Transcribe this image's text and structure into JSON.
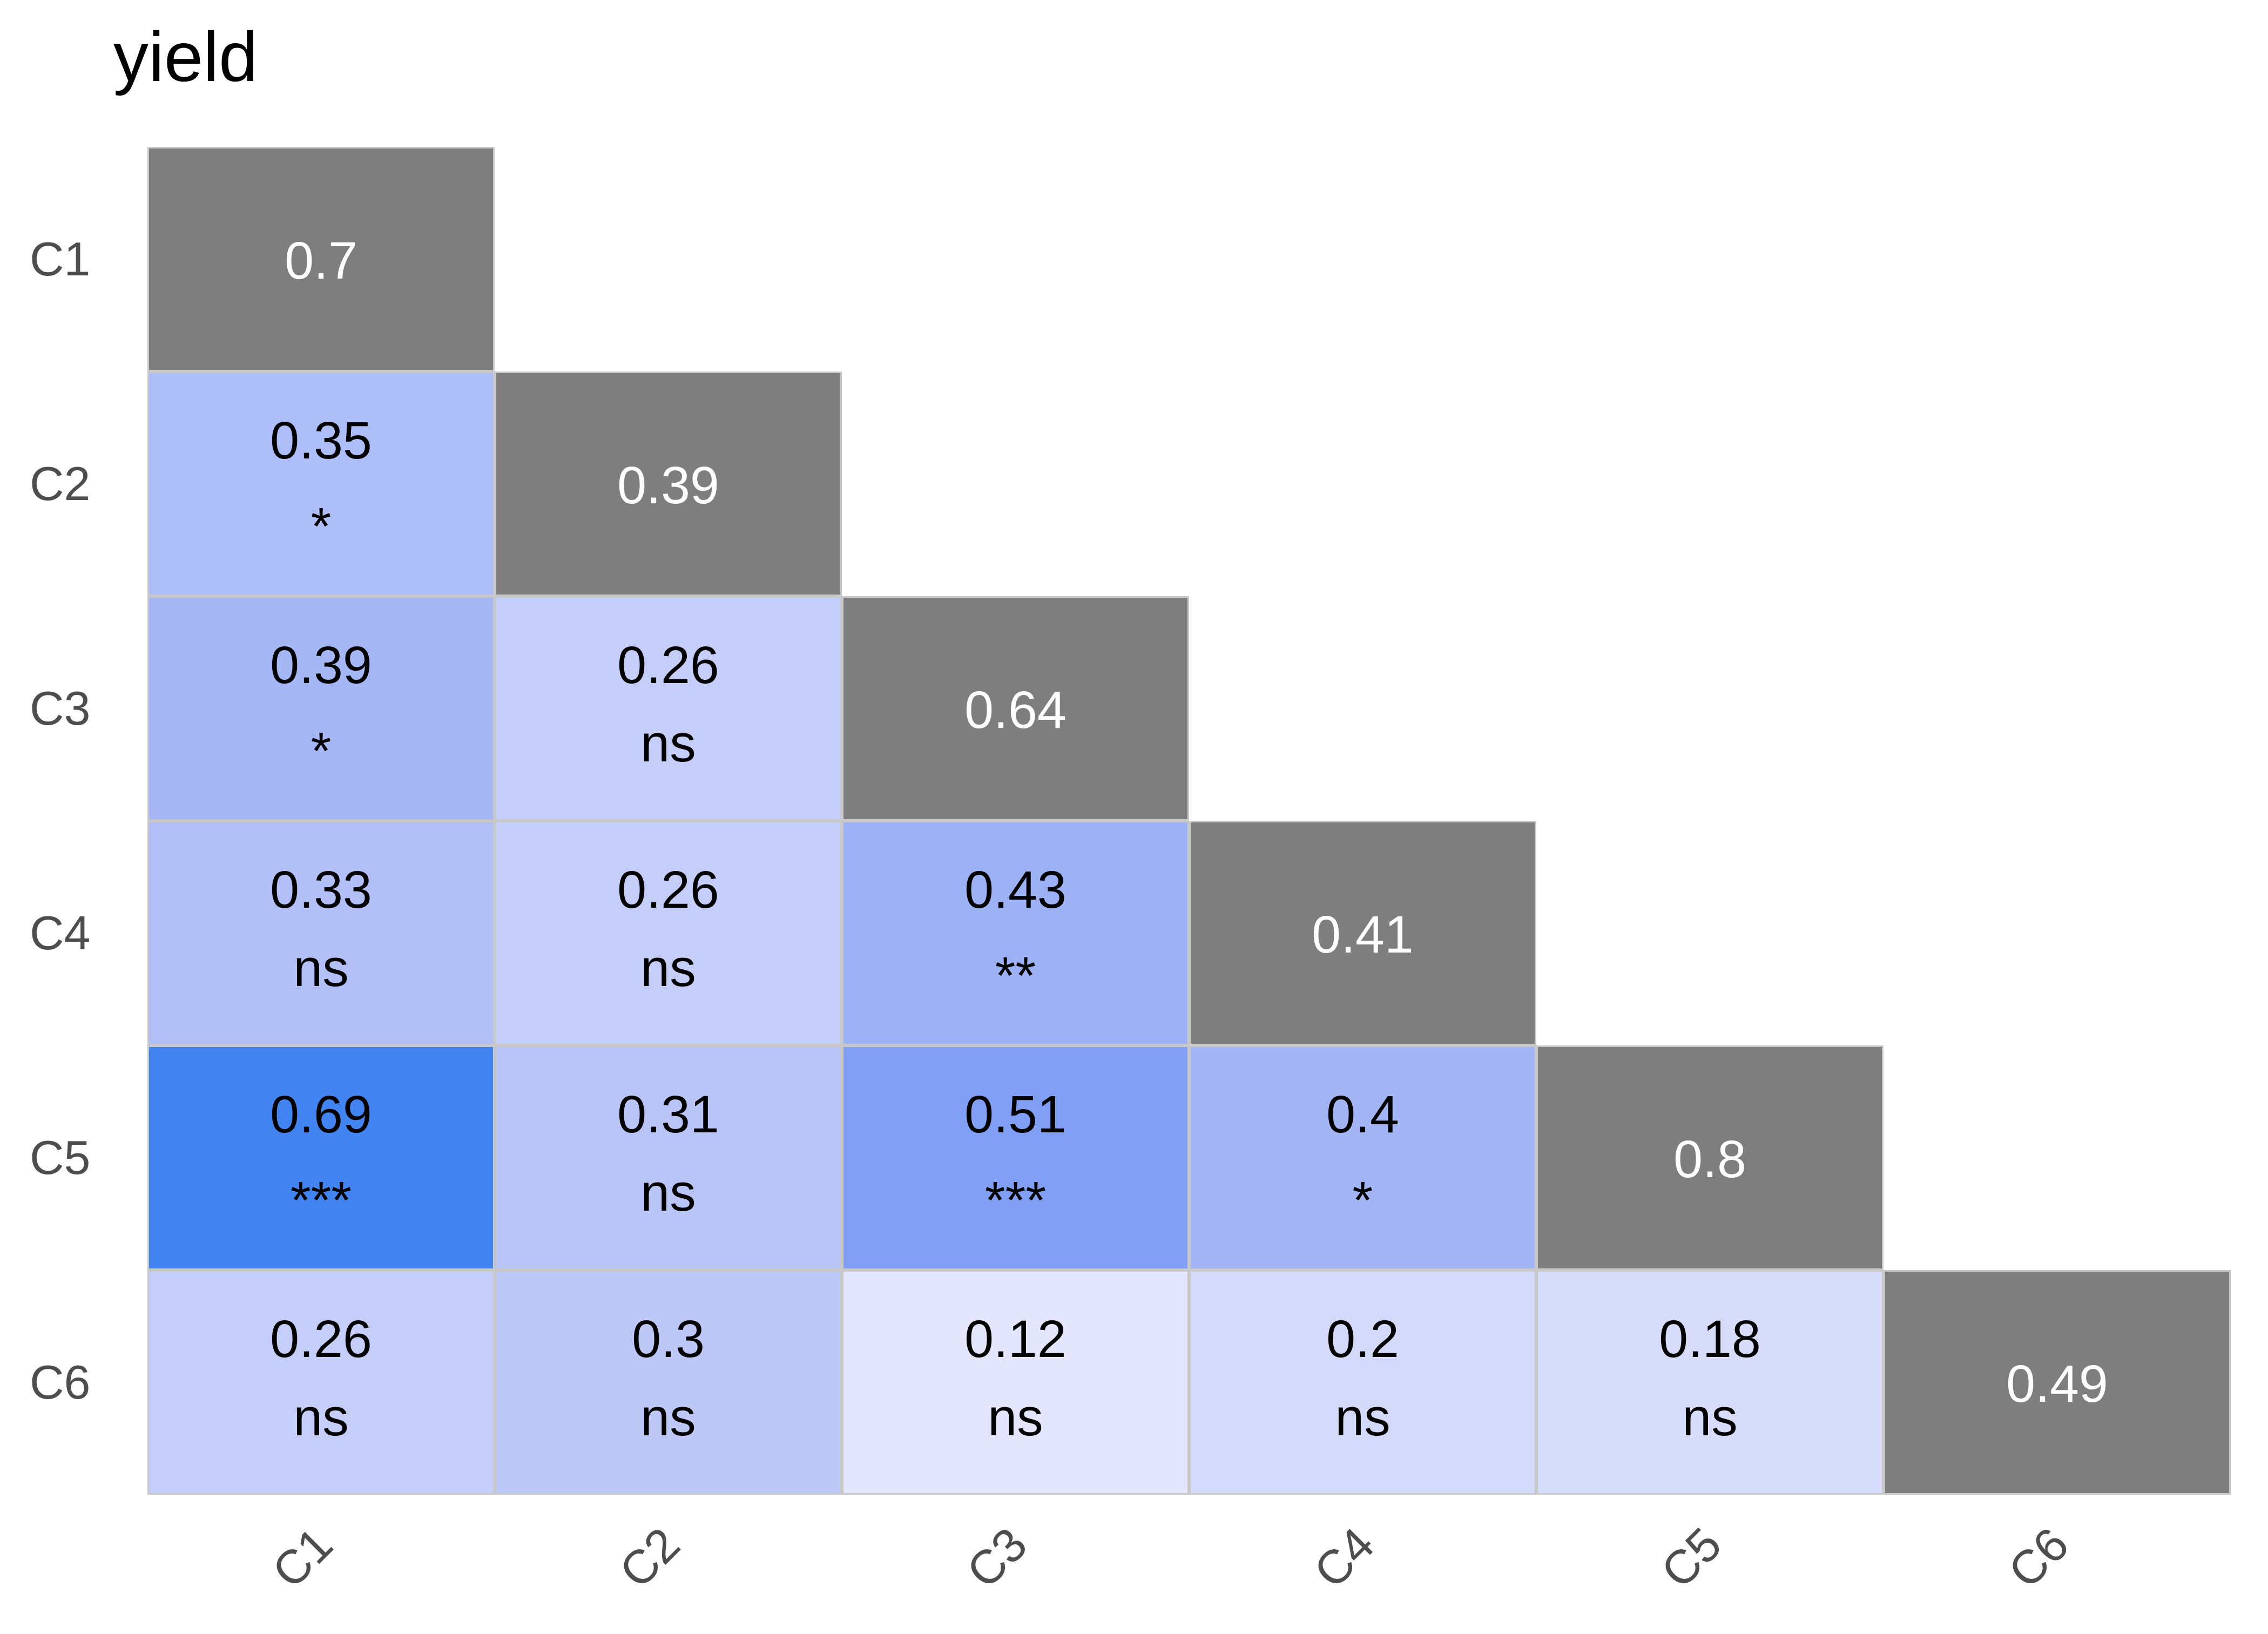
{
  "title": "yield",
  "axis": {
    "row_labels": [
      "C1",
      "C2",
      "C3",
      "C4",
      "C5",
      "C6"
    ],
    "col_labels": [
      "C1",
      "C2",
      "C3",
      "C4",
      "C5",
      "C6"
    ],
    "label_color": "#4d4d4d"
  },
  "colors": {
    "background": "#ffffff",
    "grid_line": "#c8c8c8",
    "diagonal_fill": "#7e7e7e",
    "diagonal_text": "#ffffff",
    "cell_text": "#000000",
    "title_text": "#000000"
  },
  "chart_data": {
    "type": "heatmap",
    "subtype": "lower-triangular correlation matrix with significance annotations",
    "title": "yield",
    "variables": [
      "C1",
      "C2",
      "C3",
      "C4",
      "C5",
      "C6"
    ],
    "legend_position": "none",
    "grid": "light-gray cell borders",
    "cells": [
      {
        "row": "C1",
        "col": "C1",
        "value": "0.7",
        "sig": "",
        "diagonal": true,
        "fill": "#7e7e7e"
      },
      {
        "row": "C2",
        "col": "C1",
        "value": "0.35",
        "sig": "*",
        "diagonal": false,
        "fill": "#aebef8"
      },
      {
        "row": "C2",
        "col": "C2",
        "value": "0.39",
        "sig": "",
        "diagonal": true,
        "fill": "#7e7e7e"
      },
      {
        "row": "C3",
        "col": "C1",
        "value": "0.39",
        "sig": "*",
        "diagonal": false,
        "fill": "#a6b7f6"
      },
      {
        "row": "C3",
        "col": "C2",
        "value": "0.26",
        "sig": "ns",
        "diagonal": false,
        "fill": "#c4cef8"
      },
      {
        "row": "C3",
        "col": "C3",
        "value": "0.64",
        "sig": "",
        "diagonal": true,
        "fill": "#7e7e7e"
      },
      {
        "row": "C4",
        "col": "C1",
        "value": "0.33",
        "sig": "ns",
        "diagonal": false,
        "fill": "#b2c0f7"
      },
      {
        "row": "C4",
        "col": "C2",
        "value": "0.26",
        "sig": "ns",
        "diagonal": false,
        "fill": "#c4cef8"
      },
      {
        "row": "C4",
        "col": "C3",
        "value": "0.43",
        "sig": "**",
        "diagonal": false,
        "fill": "#9db1f5"
      },
      {
        "row": "C4",
        "col": "C4",
        "value": "0.41",
        "sig": "",
        "diagonal": true,
        "fill": "#7e7e7e"
      },
      {
        "row": "C5",
        "col": "C1",
        "value": "0.69",
        "sig": "***",
        "diagonal": false,
        "fill": "#4285f2"
      },
      {
        "row": "C5",
        "col": "C2",
        "value": "0.31",
        "sig": "ns",
        "diagonal": false,
        "fill": "#b9c5f7"
      },
      {
        "row": "C5",
        "col": "C3",
        "value": "0.51",
        "sig": "***",
        "diagonal": false,
        "fill": "#819ff4"
      },
      {
        "row": "C5",
        "col": "C4",
        "value": "0.4",
        "sig": "*",
        "diagonal": false,
        "fill": "#a4b5f5"
      },
      {
        "row": "C5",
        "col": "C5",
        "value": "0.8",
        "sig": "",
        "diagonal": true,
        "fill": "#7e7e7e"
      },
      {
        "row": "C6",
        "col": "C1",
        "value": "0.26",
        "sig": "ns",
        "diagonal": false,
        "fill": "#c4cef8"
      },
      {
        "row": "C6",
        "col": "C2",
        "value": "0.3",
        "sig": "ns",
        "diagonal": false,
        "fill": "#bdc8f7"
      },
      {
        "row": "C6",
        "col": "C3",
        "value": "0.12",
        "sig": "ns",
        "diagonal": false,
        "fill": "#e3e6fc"
      },
      {
        "row": "C6",
        "col": "C4",
        "value": "0.2",
        "sig": "ns",
        "diagonal": false,
        "fill": "#d3daf9"
      },
      {
        "row": "C6",
        "col": "C5",
        "value": "0.18",
        "sig": "ns",
        "diagonal": false,
        "fill": "#d7dcfa"
      },
      {
        "row": "C6",
        "col": "C6",
        "value": "0.49",
        "sig": "",
        "diagonal": true,
        "fill": "#7e7e7e"
      }
    ]
  }
}
